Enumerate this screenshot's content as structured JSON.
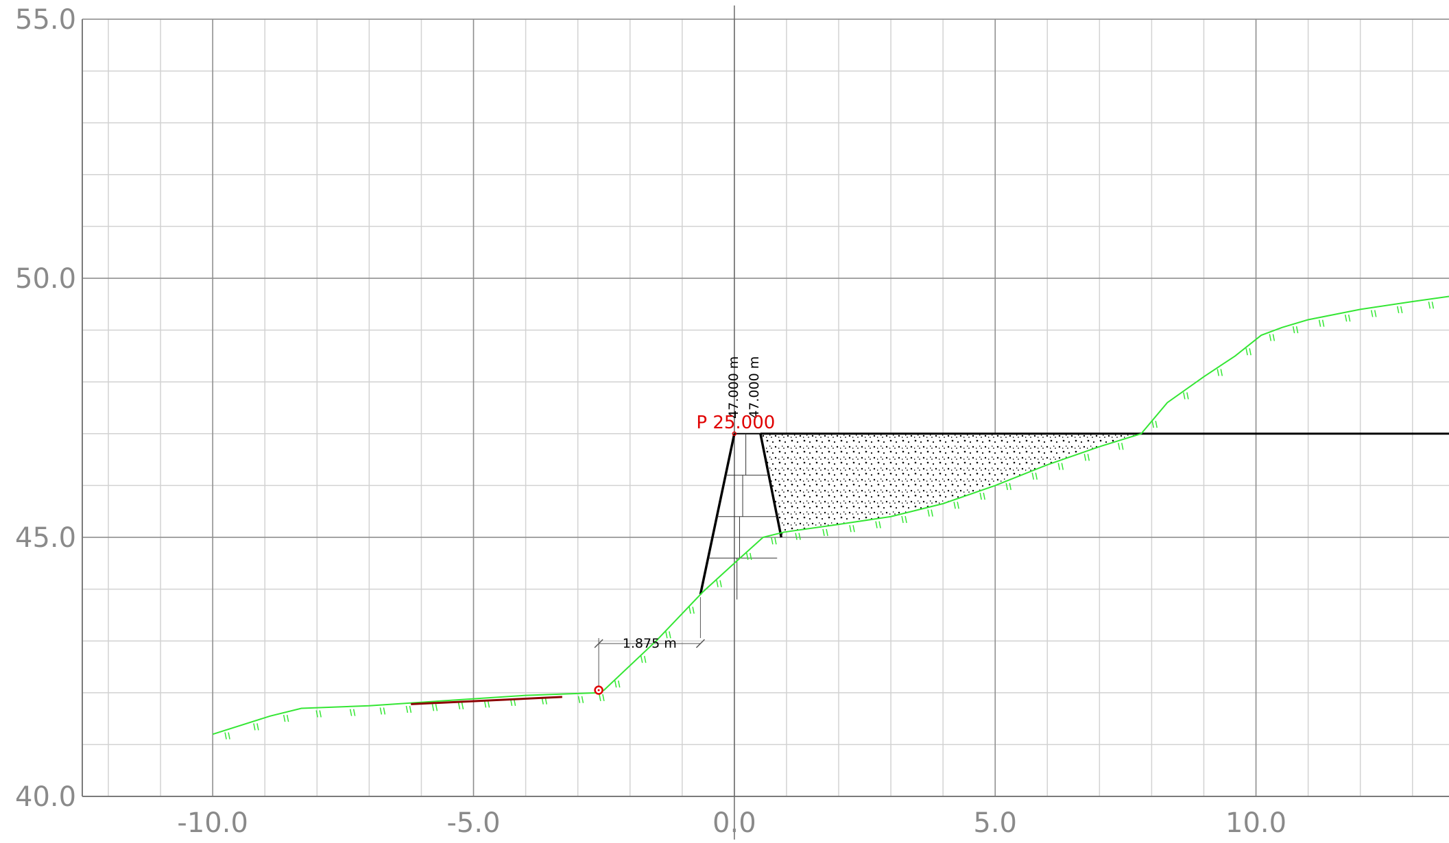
{
  "chart_data": {
    "type": "line",
    "title": "",
    "xlabel": "",
    "ylabel": "",
    "xlim": [
      -12.5,
      13.7
    ],
    "ylim": [
      40.0,
      55.0
    ],
    "grid": true,
    "x_minor_step": 1.0,
    "y_minor_step": 1.0,
    "x_major_ticks": [
      -10.0,
      -5.0,
      0.0,
      5.0,
      10.0
    ],
    "x_tick_labels": [
      "-10.0",
      "-5.0",
      "0.0",
      "5.0",
      "10.0"
    ],
    "y_major_ticks": [
      40.0,
      45.0,
      50.0,
      55.0
    ],
    "y_tick_labels": [
      "40.0",
      "45.0",
      "50.0",
      "55.0"
    ],
    "series": [
      {
        "x": [
          -10.0,
          -8.9,
          -8.3,
          -7.0,
          -5.5,
          -4.0,
          -2.6,
          -2.5,
          -1.5,
          -0.6,
          0.0,
          0.55,
          0.95,
          2.0,
          3.0,
          4.0,
          5.0,
          6.0,
          7.0,
          7.8,
          8.3,
          9.0,
          9.6,
          10.1,
          10.5,
          11.0,
          12.0,
          13.0,
          13.7
        ],
        "y": [
          41.2,
          41.55,
          41.7,
          41.75,
          41.85,
          41.95,
          42.0,
          42.05,
          43.0,
          43.95,
          44.5,
          45.0,
          45.1,
          45.25,
          45.4,
          45.65,
          46.0,
          46.4,
          46.75,
          47.0,
          47.6,
          48.1,
          48.5,
          48.9,
          49.05,
          49.2,
          49.4,
          49.55,
          49.65
        ],
        "color": "#33e633"
      }
    ],
    "wall": {
      "x": [
        -0.65,
        0.0,
        0.5,
        0.9
      ],
      "y": [
        43.9,
        47.0,
        47.0,
        45.0
      ]
    },
    "water_level": {
      "y": 47.0,
      "x_start": 0.5,
      "x_end": 13.7
    },
    "fill_area": {
      "x": [
        0.5,
        7.8,
        7.0,
        6.0,
        5.0,
        4.0,
        3.0,
        2.0,
        1.0,
        0.9
      ],
      "y": [
        47.0,
        47.0,
        46.75,
        46.4,
        46.0,
        45.65,
        45.4,
        45.25,
        45.1,
        45.0
      ]
    },
    "red_segment": {
      "x": [
        -6.2,
        -3.3
      ],
      "y": [
        41.78,
        41.92
      ]
    },
    "marker_point": {
      "x": -2.6,
      "y": 42.05
    },
    "point_label": "P 25.000",
    "level_labels": [
      "47.000 m",
      "47.000 m"
    ],
    "dimension_label": "1.875 m",
    "colors": {
      "terrain": "#33e633",
      "red_segment": "#8b0000",
      "marker": "#e00000",
      "point_label": "#e00000",
      "grid_major": "#8c8c8c",
      "grid_minor": "#d2d2d2",
      "axis_labels": "#8a8a8a"
    }
  }
}
